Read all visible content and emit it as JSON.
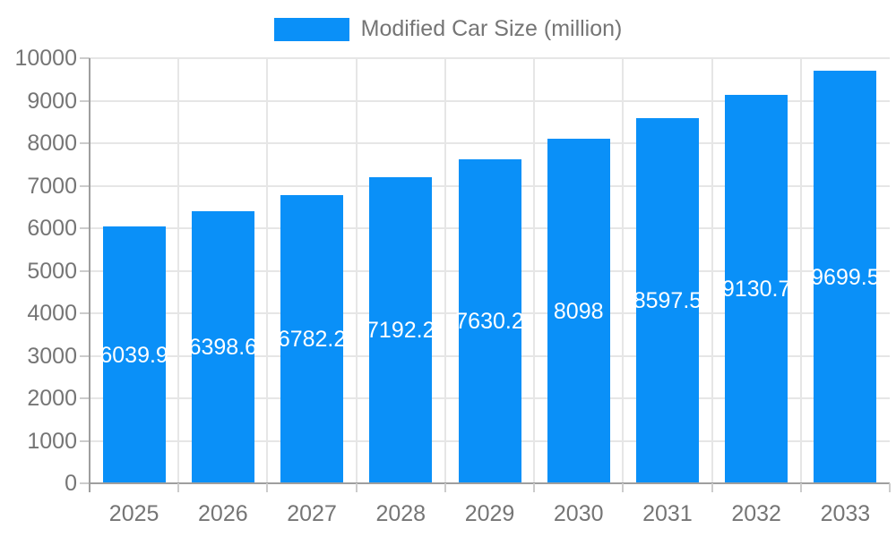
{
  "chart_data": {
    "type": "bar",
    "title": "Modified Car Size (million)",
    "legend_position": "top",
    "categories": [
      "2025",
      "2026",
      "2027",
      "2028",
      "2029",
      "2030",
      "2031",
      "2032",
      "2033"
    ],
    "series": [
      {
        "name": "Modified Car Size (million)",
        "values": [
          6039.9,
          6398.6,
          6782.2,
          7192.2,
          7630.2,
          8098,
          8597.5,
          9130.7,
          9699.5
        ],
        "labels": [
          "6039.9",
          "6398.6",
          "6782.2",
          "7192.2",
          "7630.2",
          "8098",
          "8597.5",
          "9130.7",
          "9699.5"
        ]
      }
    ],
    "xlabel": "",
    "ylabel": "",
    "ylim": [
      0,
      10000
    ],
    "ytick_step": 1000,
    "ytick_labels": [
      "0",
      "1000",
      "2000",
      "3000",
      "4000",
      "5000",
      "6000",
      "7000",
      "8000",
      "9000",
      "10000"
    ],
    "grid": true,
    "colors": {
      "bar": "#0a90f8",
      "bar_label_text": "#ffffff",
      "axis_text": "#757575",
      "axis_line": "#9e9e9e",
      "gridline": "#e6e6e6",
      "minor_tick": "#cccccc"
    }
  }
}
